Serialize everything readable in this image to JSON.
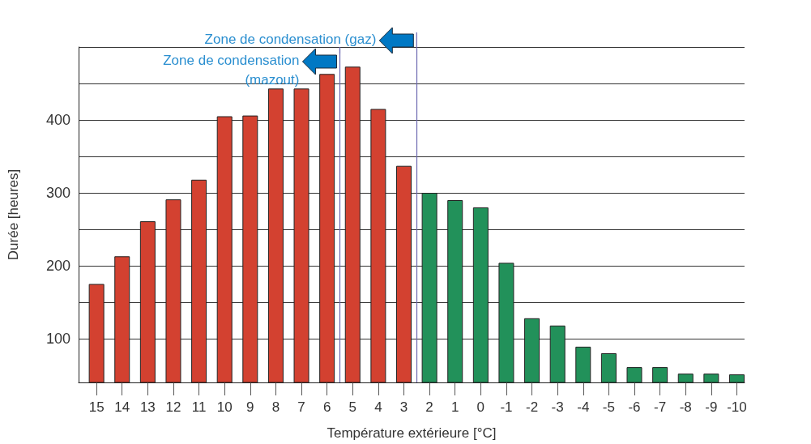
{
  "chart_data": {
    "type": "bar",
    "xlabel": "Température extérieure [°C]",
    "ylabel": "Durée [heures]",
    "x": [
      15,
      14,
      13,
      12,
      11,
      10,
      9,
      8,
      7,
      6,
      5,
      4,
      3,
      2,
      1,
      0,
      -1,
      -2,
      -3,
      -4,
      -5,
      -6,
      -7,
      -8,
      -9,
      -10
    ],
    "values": [
      175,
      213,
      261,
      291,
      318,
      405,
      406,
      443,
      443,
      463,
      473,
      415,
      337,
      300,
      290,
      280,
      204,
      128,
      118,
      89,
      80,
      61,
      61,
      52,
      52,
      51
    ],
    "colors": [
      "#d34130",
      "#d34130",
      "#d34130",
      "#d34130",
      "#d34130",
      "#d34130",
      "#d34130",
      "#d34130",
      "#d34130",
      "#d34130",
      "#d34130",
      "#d34130",
      "#d34130",
      "#22915a",
      "#22915a",
      "#22915a",
      "#22915a",
      "#22915a",
      "#22915a",
      "#22915a",
      "#22915a",
      "#22915a",
      "#22915a",
      "#22915a",
      "#22915a",
      "#22915a"
    ],
    "xlim": [
      15.7,
      -10.3
    ],
    "xticks": [
      15,
      14,
      13,
      12,
      11,
      10,
      9,
      8,
      7,
      6,
      5,
      4,
      3,
      2,
      1,
      0,
      -1,
      -2,
      -3,
      -4,
      -5,
      -6,
      -7,
      -8,
      -9,
      -10
    ],
    "ylim": [
      40,
      500
    ],
    "yticks": [
      100,
      {
        "value": 150,
        "label": null
      },
      200,
      {
        "value": 250,
        "label": null
      },
      300,
      {
        "value": 350,
        "label": null
      },
      400,
      {
        "value": 450,
        "label": null
      },
      {
        "value": 500,
        "label": null
      }
    ],
    "grid": "y",
    "ref_lines": [
      {
        "axis": "x",
        "value": 5.5,
        "label": "Zone de condensation\n(mazout)",
        "color": "#6a66b0"
      },
      {
        "axis": "x",
        "value": 2.5,
        "label": "Zone de condensation (gaz)",
        "color": "#6a66b0"
      }
    ]
  }
}
